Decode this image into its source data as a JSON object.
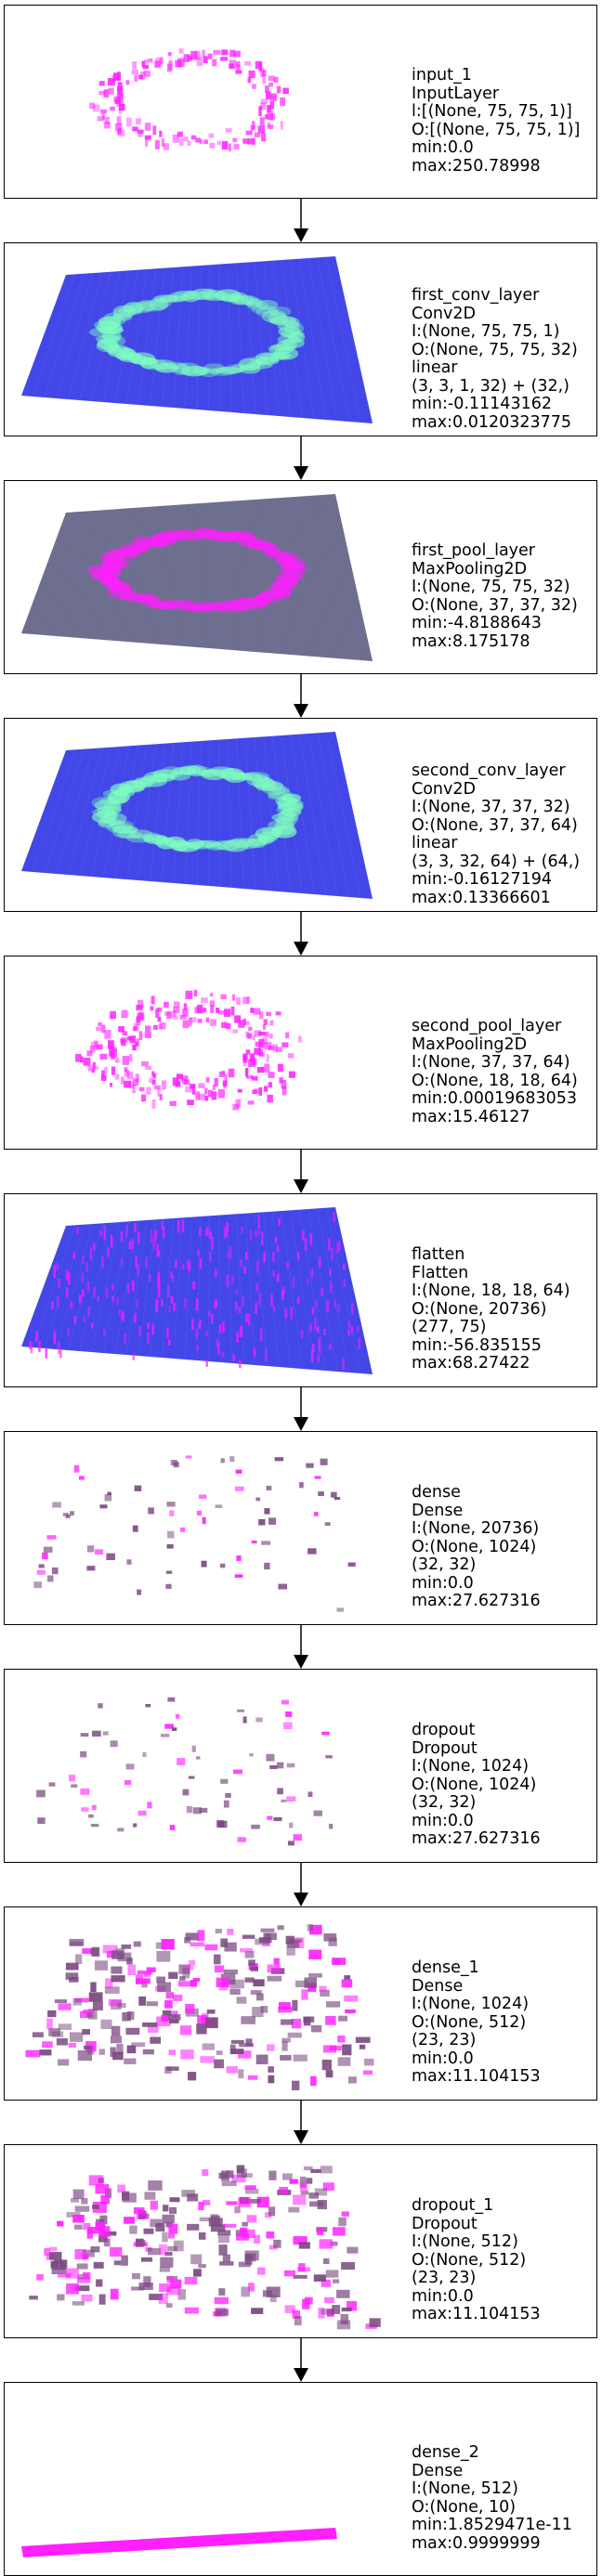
{
  "layers": [
    {
      "name": "input_1",
      "type": "InputLayer",
      "lines": [
        "l:[(None, 75, 75, 1)]",
        "O:[(None, 75, 75, 1)]",
        "min:0.0",
        "max:250.78998"
      ],
      "viz": "ring-magenta"
    },
    {
      "name": "first_conv_layer",
      "type": "Conv2D",
      "lines": [
        "I:(None, 75, 75, 1)",
        "O:(None, 75, 75, 32)",
        "linear",
        "(3, 3, 1, 32) + (32,)",
        "min:-0.11143162",
        "max:0.0120323775"
      ],
      "viz": "plane-blue-ring-green"
    },
    {
      "name": "first_pool_layer",
      "type": "MaxPooling2D",
      "lines": [
        "I:(None, 75, 75, 32)",
        "O:(None, 37, 37, 32)",
        "min:-4.8188643",
        "max:8.175178"
      ],
      "viz": "plane-gray-ring-magenta"
    },
    {
      "name": "second_conv_layer",
      "type": "Conv2D",
      "lines": [
        "I:(None, 37, 37, 32)",
        "O:(None, 37, 37, 64)",
        "linear",
        "(3, 3, 32, 64) + (64,)",
        "min:-0.16127194",
        "max:0.13366601"
      ],
      "viz": "plane-blue-ring-green"
    },
    {
      "name": "second_pool_layer",
      "type": "MaxPooling2D",
      "lines": [
        "I:(None, 37, 37, 64)",
        "O:(None, 18, 18, 64)",
        "min:0.00019683053",
        "max:15.46127"
      ],
      "viz": "ring-thick-magenta"
    },
    {
      "name": "flatten",
      "type": "Flatten",
      "lines": [
        "I:(None, 18, 18, 64)",
        "O:(None, 20736)",
        "(277, 75)",
        "min:-56.835155",
        "max:68.27422"
      ],
      "viz": "plane-blue-stripes"
    },
    {
      "name": "dense",
      "type": "Dense",
      "lines": [
        "I:(None, 20736)",
        "O:(None, 1024)",
        "(32, 32)",
        "min:0.0",
        "max:27.627316"
      ],
      "viz": "sparse"
    },
    {
      "name": "dropout",
      "type": "Dropout",
      "lines": [
        "I:(None, 1024)",
        "O:(None, 1024)",
        "(32, 32)",
        "min:0.0",
        "max:27.627316"
      ],
      "viz": "sparse"
    },
    {
      "name": "dense_1",
      "type": "Dense",
      "lines": [
        "I:(None, 1024)",
        "O:(None, 512)",
        "(23, 23)",
        "min:0.0",
        "max:11.104153"
      ],
      "viz": "dense-blocks"
    },
    {
      "name": "dropout_1",
      "type": "Dropout",
      "lines": [
        "I:(None, 512)",
        "O:(None, 512)",
        "(23, 23)",
        "min:0.0",
        "max:11.104153"
      ],
      "viz": "dense-blocks"
    },
    {
      "name": "dense_2",
      "type": "Dense",
      "lines": [
        "I:(None, 512)",
        "O:(None, 10)",
        "min:1.8529471e-11",
        "max:0.9999999"
      ],
      "viz": "bar-magenta"
    }
  ],
  "colors": {
    "magenta": "#ff1fff",
    "blue": "#2f33e6",
    "green": "#7fffc0",
    "gray": "#6a6a8a",
    "border": "#000000"
  }
}
